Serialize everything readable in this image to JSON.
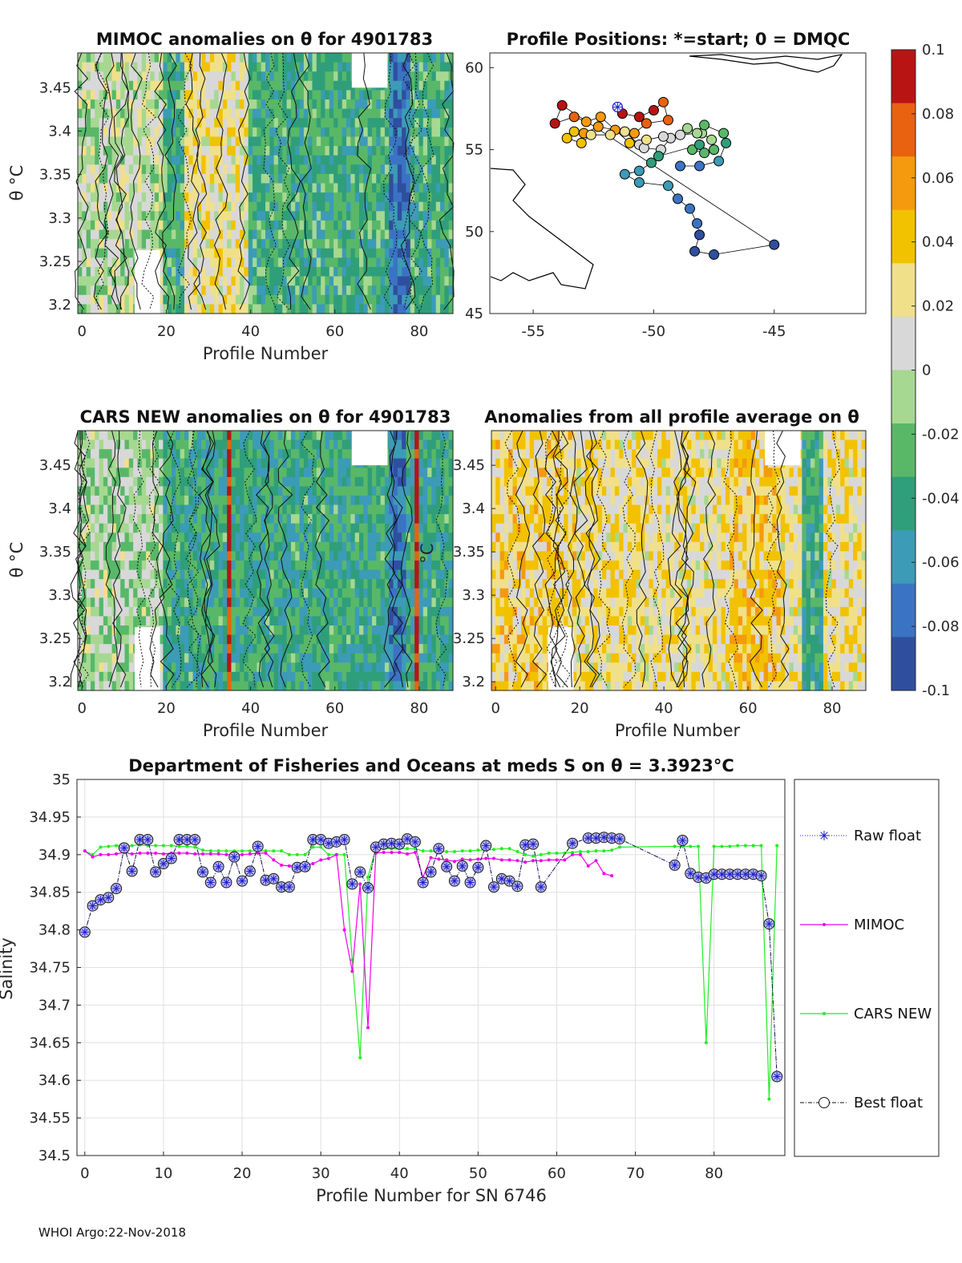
{
  "footer": "WHOI Argo:22-Nov-2018",
  "colorbar": {
    "ticks": [
      "0.1",
      "0.08",
      "0.06",
      "0.04",
      "0.02",
      "0",
      "-0.02",
      "-0.04",
      "-0.06",
      "-0.08",
      "-0.1"
    ],
    "colors": [
      "#2f4f9e",
      "#3b73c4",
      "#3c9bb7",
      "#2f9e7a",
      "#58b868",
      "#a6d891",
      "#d8d8d8",
      "#f0e08a",
      "#f2c200",
      "#f59a0f",
      "#e8620f",
      "#b81414"
    ]
  },
  "chart_data": [
    {
      "type": "heatmap",
      "title": "MIMOC anomalies on θ  for 4901783",
      "xlabel": "Profile Number",
      "ylabel": "θ °C",
      "xticks": [
        "0",
        "20",
        "40",
        "60",
        "80"
      ],
      "yticks": [
        "3.45",
        "3.4",
        "3.35",
        "3.3",
        "3.25",
        "3.2"
      ],
      "xlim": [
        -1,
        88
      ],
      "ylim": [
        3.19,
        3.49
      ],
      "clim": [
        -0.1,
        0.1
      ]
    },
    {
      "type": "scatter",
      "title": "Profile Positions: *=start; 0 = DMQC",
      "xticks": [
        "-55",
        "-50",
        "-45"
      ],
      "yticks": [
        "60",
        "55",
        "50",
        "45"
      ],
      "xlim": [
        -56.8,
        -41.2
      ],
      "ylim": [
        45,
        60.9
      ]
    },
    {
      "type": "heatmap",
      "title": "CARS NEW anomalies on θ for 4901783",
      "xlabel": "Profile Number",
      "ylabel": "θ °C",
      "xticks": [
        "0",
        "20",
        "40",
        "60",
        "80"
      ],
      "yticks": [
        "3.45",
        "3.4",
        "3.35",
        "3.3",
        "3.25",
        "3.2"
      ],
      "xlim": [
        -1,
        88
      ],
      "ylim": [
        3.19,
        3.49
      ],
      "clim": [
        -0.1,
        0.1
      ]
    },
    {
      "type": "heatmap",
      "title": "Anomalies from all profile average on θ",
      "xlabel": "Profile Number",
      "ylabel": "°C",
      "xticks": [
        "0",
        "20",
        "40",
        "60",
        "80"
      ],
      "yticks": [
        "3.45",
        "3.4",
        "3.35",
        "3.3",
        "3.25",
        "3.2"
      ],
      "xlim": [
        -1,
        88
      ],
      "ylim": [
        3.19,
        3.49
      ],
      "clim": [
        -0.1,
        0.1
      ]
    },
    {
      "type": "line",
      "title": "Department of Fisheries and Oceans at meds S on θ = 3.3923°C",
      "xlabel": "Profile Number for SN 6746",
      "ylabel": "Salinity",
      "xlim": [
        -1,
        89
      ],
      "ylim": [
        34.5,
        35
      ],
      "xticks": [
        "0",
        "10",
        "20",
        "30",
        "40",
        "50",
        "60",
        "70",
        "80"
      ],
      "yticks": [
        "35",
        "34.95",
        "34.9",
        "34.85",
        "34.8",
        "34.75",
        "34.7",
        "34.65",
        "34.6",
        "34.55",
        "34.5"
      ],
      "legend": [
        "Raw float",
        "MIMOC",
        "CARS NEW",
        "Best float"
      ],
      "series": [
        {
          "name": "Raw float",
          "color": "#1f1fd0",
          "x": [
            0,
            1,
            2,
            3,
            4,
            5,
            6,
            7,
            8,
            9,
            10,
            11,
            12,
            13,
            14,
            15,
            16,
            17,
            18,
            19,
            20,
            21,
            22,
            23,
            24,
            25,
            26,
            27,
            28,
            29,
            30,
            31,
            32,
            33,
            34,
            35,
            36,
            37,
            38,
            39,
            40,
            41,
            42,
            43,
            44,
            45,
            46,
            47,
            48,
            49,
            50,
            51,
            52,
            53,
            54,
            55,
            56,
            57,
            58,
            62,
            64,
            65,
            66,
            67,
            68,
            75,
            76,
            77,
            78,
            79,
            80,
            81,
            82,
            83,
            84,
            85,
            86,
            87,
            88
          ],
          "y": [
            34.797,
            34.832,
            34.84,
            34.843,
            34.855,
            34.909,
            34.878,
            34.92,
            34.92,
            34.877,
            34.888,
            34.895,
            34.92,
            34.92,
            34.92,
            34.877,
            34.863,
            34.884,
            34.863,
            34.897,
            34.865,
            34.878,
            34.911,
            34.866,
            34.868,
            34.857,
            34.857,
            34.883,
            34.884,
            34.92,
            34.92,
            34.915,
            34.917,
            34.92,
            34.861,
            34.877,
            34.856,
            34.91,
            34.914,
            34.915,
            34.914,
            34.921,
            34.917,
            34.863,
            34.877,
            34.908,
            34.884,
            34.865,
            34.885,
            34.863,
            34.883,
            34.912,
            34.857,
            34.868,
            34.865,
            34.858,
            34.913,
            34.914,
            34.857,
            34.915,
            34.922,
            34.922,
            34.923,
            34.922,
            34.921,
            34.886,
            34.919,
            34.875,
            34.87,
            34.869,
            34.874,
            34.874,
            34.874,
            34.874,
            34.874,
            34.874,
            34.872,
            34.808,
            34.605
          ]
        },
        {
          "name": "MIMOC",
          "color": "#ee00ee",
          "x": [
            0,
            1,
            2,
            3,
            4,
            5,
            6,
            7,
            8,
            9,
            10,
            11,
            12,
            13,
            14,
            15,
            16,
            17,
            18,
            19,
            20,
            21,
            22,
            23,
            24,
            25,
            26,
            27,
            28,
            29,
            30,
            31,
            32,
            33,
            34,
            35,
            36,
            37,
            38,
            39,
            40,
            41,
            42,
            43,
            44,
            45,
            46,
            47,
            48,
            49,
            50,
            51,
            52,
            53,
            54,
            55,
            56,
            57,
            58,
            59,
            60,
            61,
            62,
            63,
            64,
            65,
            66,
            67
          ],
          "y": [
            34.905,
            34.897,
            34.9,
            34.9,
            34.901,
            34.903,
            34.901,
            34.902,
            34.902,
            34.902,
            34.901,
            34.902,
            34.902,
            34.902,
            34.901,
            34.901,
            34.901,
            34.901,
            34.9,
            34.9,
            34.9,
            34.901,
            34.902,
            34.902,
            34.893,
            34.886,
            34.885,
            34.885,
            34.886,
            34.888,
            34.893,
            34.895,
            34.9,
            34.8,
            34.745,
            34.861,
            34.67,
            34.902,
            34.903,
            34.903,
            34.903,
            34.901,
            34.903,
            34.87,
            34.896,
            34.894,
            34.893,
            34.891,
            34.894,
            34.893,
            34.894,
            34.895,
            34.895,
            34.893,
            34.893,
            34.892,
            34.89,
            34.892,
            34.892,
            34.893,
            34.893,
            34.893,
            34.9,
            34.9,
            34.885,
            34.892,
            34.875,
            34.872
          ]
        },
        {
          "name": "CARS NEW",
          "color": "#22ee22",
          "x": [
            0,
            1,
            2,
            3,
            4,
            5,
            6,
            7,
            8,
            9,
            10,
            11,
            12,
            13,
            14,
            15,
            16,
            17,
            18,
            19,
            20,
            21,
            22,
            23,
            24,
            25,
            26,
            27,
            28,
            29,
            30,
            31,
            32,
            33,
            34,
            35,
            36,
            37,
            38,
            39,
            40,
            41,
            42,
            43,
            44,
            45,
            46,
            47,
            48,
            49,
            50,
            51,
            52,
            53,
            54,
            55,
            56,
            57,
            58,
            59,
            60,
            61,
            62,
            63,
            64,
            65,
            66,
            67,
            68,
            75,
            76,
            77,
            78,
            79,
            80,
            81,
            82,
            83,
            84,
            85,
            86,
            87,
            88
          ],
          "y": [
            34.905,
            34.9,
            34.91,
            34.911,
            34.912,
            34.911,
            34.912,
            34.913,
            34.912,
            34.912,
            34.912,
            34.912,
            34.911,
            34.911,
            34.91,
            34.906,
            34.905,
            34.905,
            34.905,
            34.905,
            34.905,
            34.905,
            34.905,
            34.905,
            34.905,
            34.905,
            34.9,
            34.9,
            34.9,
            34.91,
            34.91,
            34.9,
            34.9,
            34.9,
            34.76,
            34.63,
            34.87,
            34.908,
            34.908,
            34.908,
            34.908,
            34.908,
            34.908,
            34.905,
            34.905,
            34.904,
            34.904,
            34.904,
            34.905,
            34.905,
            34.906,
            34.906,
            34.907,
            34.908,
            34.908,
            34.904,
            34.9,
            34.898,
            34.9,
            34.902,
            34.902,
            34.902,
            34.903,
            34.904,
            34.904,
            34.905,
            34.905,
            34.906,
            34.91,
            34.911,
            34.911,
            34.911,
            34.911,
            34.65,
            34.911,
            34.911,
            34.911,
            34.912,
            34.912,
            34.912,
            34.912,
            34.575,
            34.912
          ]
        },
        {
          "name": "Best float",
          "color": "#111111",
          "x": [
            0,
            1,
            2,
            3,
            4,
            5,
            6,
            7,
            8,
            9,
            10,
            11,
            12,
            13,
            14,
            15,
            16,
            17,
            18,
            19,
            20,
            21,
            22,
            23,
            24,
            25,
            26,
            27,
            28,
            29,
            30,
            31,
            32,
            33,
            34,
            35,
            36,
            37,
            38,
            39,
            40,
            41,
            42,
            43,
            44,
            45,
            46,
            47,
            48,
            49,
            50,
            51,
            52,
            53,
            54,
            55,
            56,
            57,
            58,
            62,
            64,
            65,
            66,
            67,
            68,
            75,
            76,
            77,
            78,
            79,
            80,
            81,
            82,
            83,
            84,
            85,
            86,
            87,
            88
          ],
          "y": [
            34.797,
            34.832,
            34.84,
            34.843,
            34.855,
            34.909,
            34.878,
            34.92,
            34.92,
            34.877,
            34.888,
            34.895,
            34.92,
            34.92,
            34.92,
            34.877,
            34.863,
            34.884,
            34.863,
            34.897,
            34.865,
            34.878,
            34.911,
            34.866,
            34.868,
            34.857,
            34.857,
            34.883,
            34.884,
            34.92,
            34.92,
            34.915,
            34.917,
            34.92,
            34.861,
            34.877,
            34.856,
            34.91,
            34.914,
            34.915,
            34.914,
            34.921,
            34.917,
            34.863,
            34.877,
            34.908,
            34.884,
            34.865,
            34.885,
            34.863,
            34.883,
            34.912,
            34.857,
            34.868,
            34.865,
            34.858,
            34.913,
            34.914,
            34.857,
            34.915,
            34.922,
            34.922,
            34.923,
            34.922,
            34.921,
            34.886,
            34.919,
            34.875,
            34.87,
            34.869,
            34.874,
            34.874,
            34.874,
            34.874,
            34.874,
            34.874,
            34.872,
            34.808,
            34.605
          ]
        }
      ]
    }
  ]
}
